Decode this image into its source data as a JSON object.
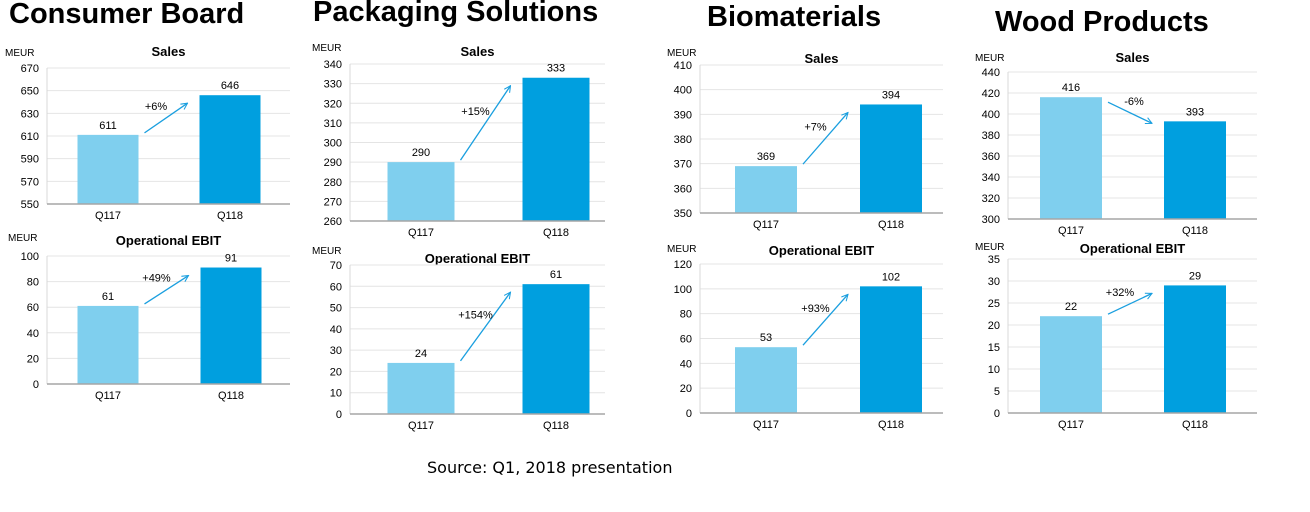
{
  "source": "Source: Q1, 2018 presentation",
  "colors": {
    "prior": "#7fcfee",
    "current": "#009fdf",
    "arrow": "#1a9fdf",
    "grid": "#e4e4e4",
    "axis": "#a6a6a6"
  },
  "segments": [
    {
      "title": "Consumer Board"
    },
    {
      "title": "Packaging Solutions"
    },
    {
      "title": "Biomaterials"
    },
    {
      "title": "Wood Products"
    }
  ],
  "chart_data": [
    {
      "type": "bar",
      "segment": "Consumer Board",
      "title": "Sales",
      "unit": "MEUR",
      "categories": [
        "Q117",
        "Q118"
      ],
      "values": [
        611,
        646
      ],
      "change": "+6%",
      "ylim": [
        550,
        670
      ],
      "yticks": [
        550,
        570,
        590,
        610,
        630,
        650,
        670
      ],
      "grid": true
    },
    {
      "type": "bar",
      "segment": "Consumer Board",
      "title": "Operational EBIT",
      "unit": "MEUR",
      "categories": [
        "Q117",
        "Q118"
      ],
      "values": [
        61,
        91
      ],
      "change": "+49%",
      "ylim": [
        0,
        100
      ],
      "yticks": [
        0,
        20,
        40,
        60,
        80,
        100
      ],
      "grid": true
    },
    {
      "type": "bar",
      "segment": "Packaging Solutions",
      "title": "Sales",
      "unit": "MEUR",
      "categories": [
        "Q117",
        "Q118"
      ],
      "values": [
        290,
        333
      ],
      "change": "+15%",
      "ylim": [
        260,
        340
      ],
      "yticks": [
        260,
        270,
        280,
        290,
        300,
        310,
        320,
        330,
        340
      ],
      "grid": true
    },
    {
      "type": "bar",
      "segment": "Packaging Solutions",
      "title": "Operational EBIT",
      "unit": "MEUR",
      "categories": [
        "Q117",
        "Q118"
      ],
      "values": [
        24,
        61
      ],
      "change": "+154%",
      "ylim": [
        0,
        70
      ],
      "yticks": [
        0,
        10,
        20,
        30,
        40,
        50,
        60,
        70
      ],
      "grid": true
    },
    {
      "type": "bar",
      "segment": "Biomaterials",
      "title": "Sales",
      "unit": "MEUR",
      "categories": [
        "Q117",
        "Q118"
      ],
      "values": [
        369,
        394
      ],
      "change": "+7%",
      "ylim": [
        350,
        410
      ],
      "yticks": [
        350,
        360,
        370,
        380,
        390,
        400,
        410
      ],
      "grid": true
    },
    {
      "type": "bar",
      "segment": "Biomaterials",
      "title": "Operational EBIT",
      "unit": "MEUR",
      "categories": [
        "Q117",
        "Q118"
      ],
      "values": [
        53,
        102
      ],
      "change": "+93%",
      "ylim": [
        0,
        120
      ],
      "yticks": [
        0,
        20,
        40,
        60,
        80,
        100,
        120
      ],
      "grid": true
    },
    {
      "type": "bar",
      "segment": "Wood Products",
      "title": "Sales",
      "unit": "MEUR",
      "categories": [
        "Q117",
        "Q118"
      ],
      "values": [
        416,
        393
      ],
      "change": "-6%",
      "ylim": [
        300,
        440
      ],
      "yticks": [
        300,
        320,
        340,
        360,
        380,
        400,
        420,
        440
      ],
      "grid": true
    },
    {
      "type": "bar",
      "segment": "Wood Products",
      "title": "Operational EBIT",
      "unit": "MEUR",
      "categories": [
        "Q117",
        "Q118"
      ],
      "values": [
        22,
        29
      ],
      "change": "+32%",
      "ylim": [
        0,
        35
      ],
      "yticks": [
        0,
        5,
        10,
        15,
        20,
        25,
        30,
        35
      ],
      "grid": true
    }
  ]
}
